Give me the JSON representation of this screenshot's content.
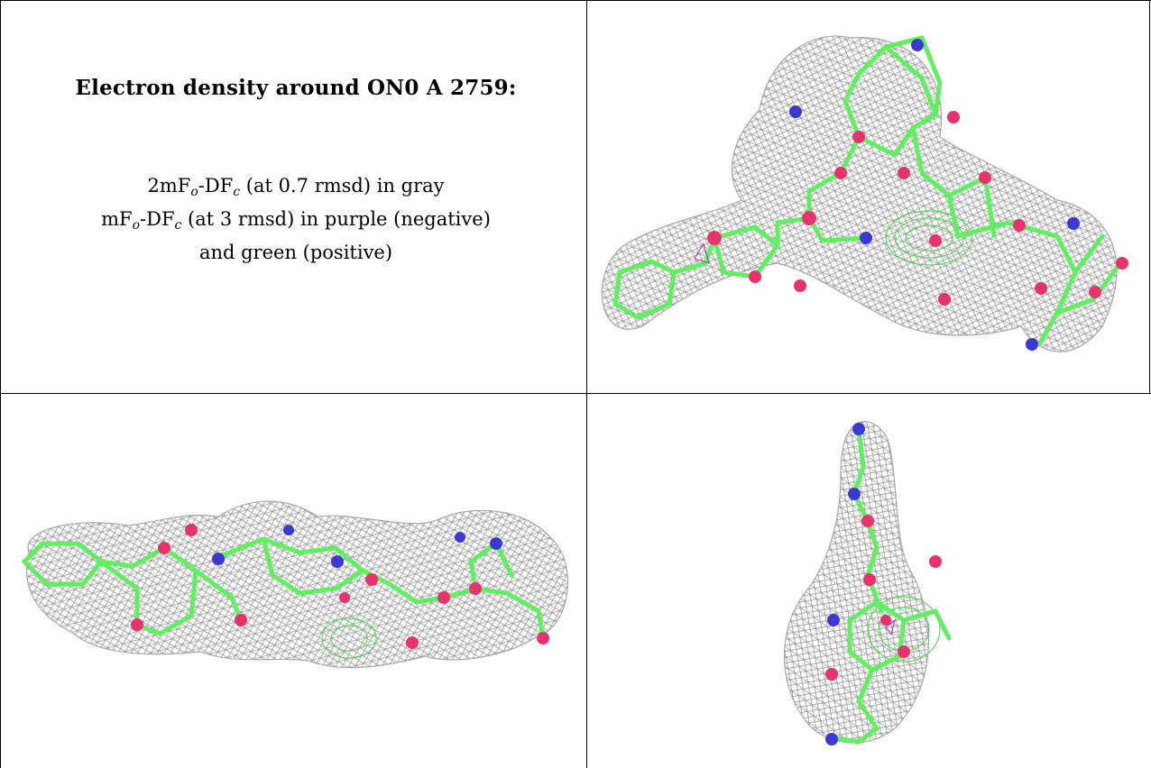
{
  "caption": {
    "title": "Electron density around ON0 A 2759:",
    "legend": [
      {
        "base": "2mF",
        "sub1": "o",
        "mid": "-DF",
        "sub2": "c",
        "text": " (at 0.7 rmsd) in gray"
      },
      {
        "base": "mF",
        "sub1": "o",
        "mid": "-DF",
        "sub2": "c",
        "text": " (at 3 rmsd) in purple (negative)"
      },
      {
        "text": "and green (positive)"
      }
    ]
  },
  "colors": {
    "mesh": "#9a9a9a",
    "carbon_bond": "#5ff060",
    "oxygen": "#e8326e",
    "nitrogen": "#3a3ad2",
    "positive_density": "#3adf3a",
    "negative_density": "#b030c0"
  },
  "views": [
    "top-right view",
    "bottom-left view",
    "bottom-right view"
  ]
}
